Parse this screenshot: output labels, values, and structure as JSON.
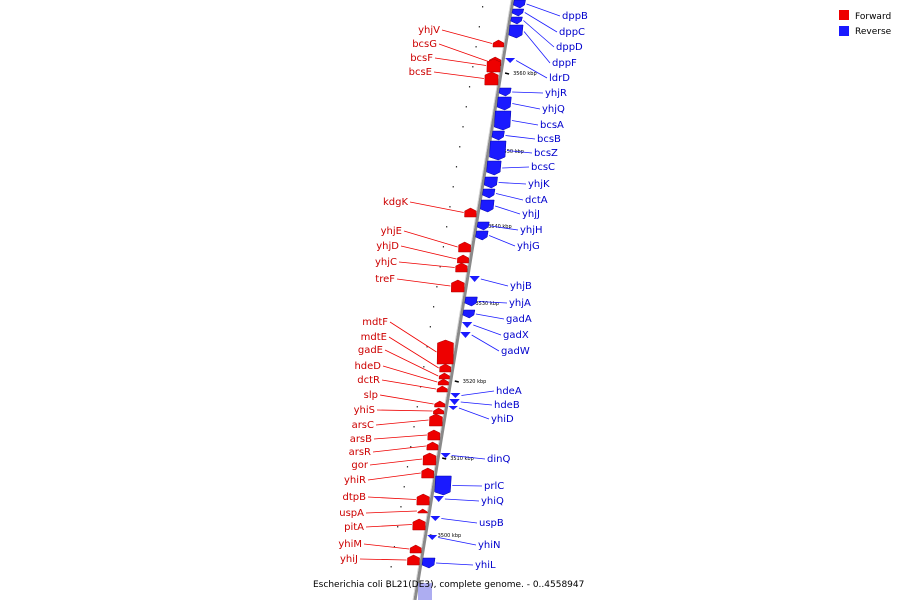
{
  "legend": [
    {
      "label": "Forward",
      "color": "#ee0000"
    },
    {
      "label": "Reverse",
      "color": "#1a1aff"
    }
  ],
  "caption": "Escherichia coli BL21(DE3), complete genome. - 0..4558947",
  "colors": {
    "forward": "#ee0000",
    "reverse": "#1a1aff",
    "axis": "#808080"
  },
  "kbp_marks": [
    "3560 kbp",
    "3550 kbp",
    "3540 kbp",
    "3530 kbp",
    "3520 kbp",
    "3510 kbp",
    "3500 kbp"
  ],
  "forward_genes": [
    "yhjV",
    "bcsG",
    "bcsF",
    "bcsE",
    "kdgK",
    "yhjE",
    "yhjD",
    "yhjC",
    "treF",
    "mdtF",
    "mdtE",
    "gadE",
    "hdeD",
    "dctR",
    "slp",
    "yhiS",
    "arsC",
    "arsB",
    "arsR",
    "gor",
    "yhiR",
    "dtpB",
    "uspA",
    "pitA",
    "yhiM",
    "yhiJ"
  ],
  "reverse_genes": [
    "dppB",
    "dppC",
    "dppD",
    "dppF",
    "ldrD",
    "yhjR",
    "yhjQ",
    "bcsA",
    "bcsB",
    "bcsZ",
    "bcsC",
    "yhjK",
    "dctA",
    "yhjJ",
    "yhjH",
    "yhjG",
    "yhjB",
    "yhjA",
    "gadA",
    "gadX",
    "gadW",
    "hdeA",
    "hdeB",
    "yhiD",
    "dinQ",
    "prlC",
    "yhiQ",
    "uspB",
    "yhiN",
    "yhiL"
  ]
}
